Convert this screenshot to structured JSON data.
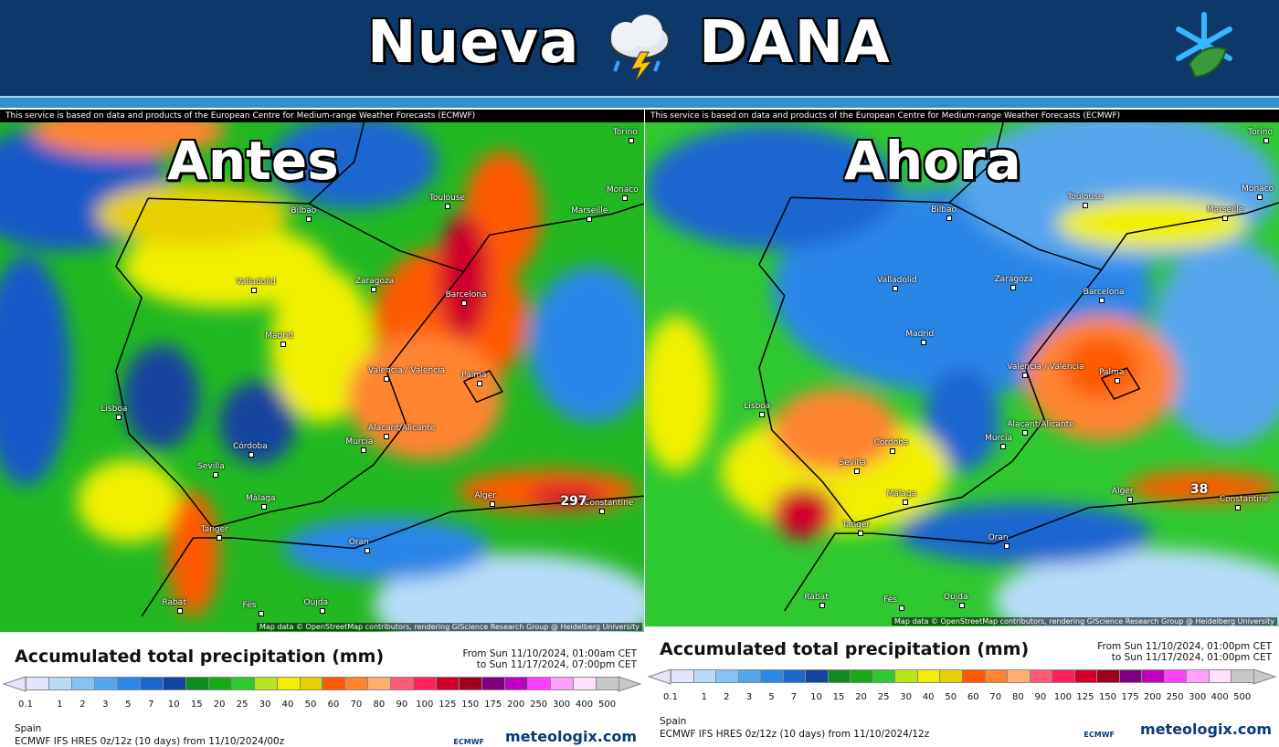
{
  "header": {
    "title_left": "Nueva",
    "title_right": "DANA"
  },
  "panels": [
    {
      "overlay_label": "Antes",
      "notice": "This service is based on data and products of the European Centre for Medium-range Weather Forecasts (ECMWF)",
      "attribution": "Map data © OpenStreetMap contributors, rendering GIScience Research Group @ Heidelberg University",
      "legend_title": "Accumulated total precipitation (mm)",
      "period_from": "From Sun 11/10/2024, 01:00am CET",
      "period_to": "to Sun 11/17/2024, 07:00pm CET",
      "region": "Spain",
      "model": "ECMWF IFS HRES 0z/12z (10 days) from 11/10/2024/00z",
      "ecmwf": "ECMWF",
      "brand": "meteologix.com",
      "peak_label": "297"
    },
    {
      "overlay_label": "Ahora",
      "notice": "This service is based on data and products of the European Centre for Medium-range Weather Forecasts (ECMWF)",
      "attribution": "Map data © OpenStreetMap contributors, rendering GIScience Research Group @ Heidelberg University",
      "legend_title": "Accumulated total precipitation (mm)",
      "period_from": "From Sun 11/10/2024, 01:00pm CET",
      "period_to": "to Sun 11/17/2024, 01:00pm CET",
      "region": "Spain",
      "model": "ECMWF IFS HRES 0z/12z (10 days) from 11/10/2024/12z",
      "ecmwf": "ECMWF",
      "brand": "meteologix.com",
      "peak_label": "38"
    }
  ],
  "cities": [
    "Toulouse",
    "Marseille",
    "Monaco",
    "Torino",
    "Bilbao",
    "Zaragoza",
    "Barcelona",
    "Valladolid",
    "Madrid",
    "Valencia / València",
    "Palma",
    "Lisboa",
    "Alacant/Alicante",
    "Murcia",
    "Córdoba",
    "Sevilla",
    "Málaga",
    "Tanger",
    "Alger",
    "Constantine",
    "Oran",
    "Oujda",
    "Rabat",
    "Fès"
  ],
  "legend": {
    "values": [
      0.1,
      1,
      2,
      3,
      5,
      7,
      10,
      15,
      20,
      25,
      30,
      40,
      50,
      60,
      70,
      80,
      90,
      100,
      125,
      150,
      175,
      200,
      250,
      300,
      400,
      500
    ],
    "colors": [
      "#e4e4fa",
      "#b8dcf8",
      "#86c2f4",
      "#56a6ee",
      "#2c86e6",
      "#1c66d0",
      "#12449e",
      "#0e8a1e",
      "#18a818",
      "#30c830",
      "#b8e61a",
      "#f0f000",
      "#e8d000",
      "#ff5a00",
      "#ff8430",
      "#ffae70",
      "#ff5a7a",
      "#ff2060",
      "#d0002a",
      "#a00020",
      "#800080",
      "#c000c0",
      "#ff40ff",
      "#ffa0ff",
      "#ffe0ff",
      "#c8c8c8"
    ]
  }
}
